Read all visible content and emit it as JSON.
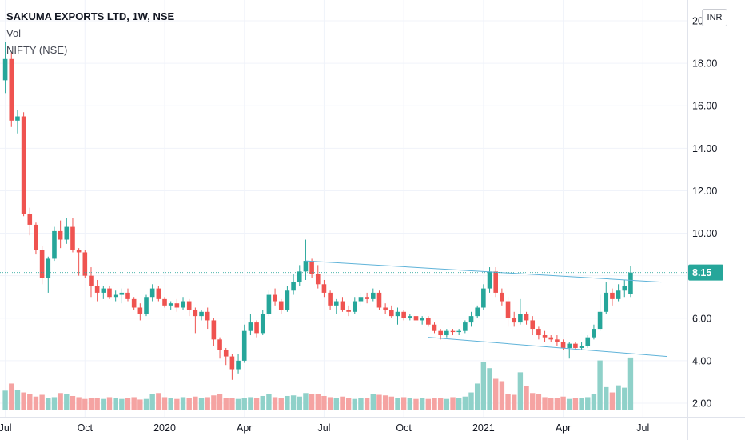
{
  "legend": {
    "title": "SAKUMA EXPORTS LTD, 1W, NSE",
    "vol": "Vol",
    "compare": "NIFTY (NSE)"
  },
  "currency": "INR",
  "colors": {
    "up": "#26a69a",
    "down": "#ef5350",
    "vol_up": "#8fd1c9",
    "vol_down": "#f5a3a2",
    "trend": "#5fb3d9",
    "last_price_bg": "#26a69a"
  },
  "chart_data": {
    "type": "candlestick",
    "title": "SAKUMA EXPORTS LTD, 1W, NSE",
    "ylim": [
      1.4,
      20.6
    ],
    "y_ticks": [
      "20",
      "18.00",
      "16.00",
      "14.00",
      "12.00",
      "10.00",
      "8.00",
      "6.00",
      "4.00",
      "2.00"
    ],
    "y_tick_values": [
      20,
      18,
      16,
      14,
      12,
      10,
      8,
      6,
      4,
      2
    ],
    "x_labels": [
      {
        "w": 0,
        "label": "Jul"
      },
      {
        "w": 13,
        "label": "Oct"
      },
      {
        "w": 26,
        "label": "2020"
      },
      {
        "w": 39,
        "label": "Apr"
      },
      {
        "w": 52,
        "label": "Jul"
      },
      {
        "w": 65,
        "label": "Oct"
      },
      {
        "w": 78,
        "label": "2021"
      },
      {
        "w": 91,
        "label": "Apr"
      },
      {
        "w": 104,
        "label": "Jul"
      }
    ],
    "last_price": "8.15",
    "last_price_value": 8.15,
    "candles": [
      [
        17.2,
        19.0,
        16.6,
        18.2
      ],
      [
        18.2,
        18.5,
        15.0,
        15.3
      ],
      [
        15.3,
        15.8,
        14.7,
        15.5
      ],
      [
        15.5,
        15.7,
        10.8,
        10.9
      ],
      [
        10.9,
        11.2,
        9.9,
        10.4
      ],
      [
        10.4,
        10.5,
        9.0,
        9.2
      ],
      [
        9.2,
        9.4,
        7.6,
        7.9
      ],
      [
        7.9,
        8.9,
        7.2,
        8.8
      ],
      [
        8.8,
        10.3,
        8.7,
        10.1
      ],
      [
        10.1,
        10.6,
        9.3,
        9.7
      ],
      [
        9.7,
        10.7,
        9.5,
        10.3
      ],
      [
        10.3,
        10.7,
        9.1,
        9.2
      ],
      [
        9.2,
        9.3,
        8.0,
        9.1
      ],
      [
        9.1,
        9.2,
        7.9,
        8.0
      ],
      [
        8.0,
        8.4,
        7.0,
        7.5
      ],
      [
        7.5,
        7.8,
        6.8,
        7.2
      ],
      [
        7.2,
        7.5,
        6.9,
        7.4
      ],
      [
        7.4,
        7.5,
        6.9,
        7.0
      ],
      [
        7.0,
        7.3,
        6.8,
        7.1
      ],
      [
        7.1,
        7.4,
        6.7,
        7.2
      ],
      [
        7.2,
        7.4,
        6.8,
        6.9
      ],
      [
        6.9,
        7.0,
        6.4,
        6.5
      ],
      [
        6.5,
        6.7,
        5.9,
        6.2
      ],
      [
        6.2,
        7.1,
        6.1,
        7.0
      ],
      [
        7.0,
        7.6,
        6.8,
        7.4
      ],
      [
        7.4,
        7.5,
        6.8,
        6.9
      ],
      [
        6.9,
        7.0,
        6.5,
        6.6
      ],
      [
        6.6,
        6.8,
        6.4,
        6.7
      ],
      [
        6.7,
        6.9,
        6.3,
        6.5
      ],
      [
        6.5,
        7.0,
        6.4,
        6.8
      ],
      [
        6.8,
        6.9,
        6.1,
        6.4
      ],
      [
        6.4,
        6.5,
        5.3,
        6.1
      ],
      [
        6.1,
        6.4,
        5.9,
        6.3
      ],
      [
        6.3,
        6.5,
        5.5,
        5.9
      ],
      [
        5.9,
        6.0,
        4.7,
        5.0
      ],
      [
        5.0,
        5.1,
        4.1,
        4.5
      ],
      [
        4.5,
        4.6,
        3.8,
        4.2
      ],
      [
        4.2,
        4.3,
        3.1,
        3.6
      ],
      [
        3.6,
        4.3,
        3.4,
        4.0
      ],
      [
        4.0,
        5.7,
        3.9,
        5.4
      ],
      [
        5.4,
        6.2,
        5.2,
        5.8
      ],
      [
        5.8,
        5.9,
        5.1,
        5.3
      ],
      [
        5.3,
        6.4,
        5.2,
        6.2
      ],
      [
        6.2,
        7.3,
        6.1,
        7.1
      ],
      [
        7.1,
        7.4,
        6.6,
        6.8
      ],
      [
        6.8,
        6.9,
        6.2,
        6.4
      ],
      [
        6.4,
        7.5,
        6.3,
        7.3
      ],
      [
        7.3,
        8.1,
        7.1,
        7.7
      ],
      [
        7.7,
        8.5,
        7.5,
        8.2
      ],
      [
        8.2,
        9.7,
        7.8,
        8.7
      ],
      [
        8.7,
        8.8,
        7.9,
        8.1
      ],
      [
        8.1,
        8.5,
        7.4,
        7.6
      ],
      [
        7.6,
        7.8,
        7.0,
        7.2
      ],
      [
        7.2,
        7.3,
        6.4,
        6.6
      ],
      [
        6.6,
        6.9,
        6.2,
        6.8
      ],
      [
        6.8,
        7.0,
        6.3,
        6.4
      ],
      [
        6.4,
        6.6,
        6.1,
        6.3
      ],
      [
        6.3,
        7.0,
        6.2,
        6.8
      ],
      [
        6.8,
        7.2,
        6.6,
        7.0
      ],
      [
        7.0,
        7.2,
        6.7,
        6.9
      ],
      [
        6.9,
        7.4,
        6.8,
        7.2
      ],
      [
        7.2,
        7.3,
        6.4,
        6.5
      ],
      [
        6.5,
        6.7,
        6.2,
        6.4
      ],
      [
        6.4,
        6.6,
        6.0,
        6.1
      ],
      [
        6.1,
        6.5,
        5.7,
        6.3
      ],
      [
        6.3,
        6.4,
        5.9,
        6.0
      ],
      [
        6.0,
        6.2,
        5.9,
        6.1
      ],
      [
        6.1,
        6.2,
        5.8,
        5.9
      ],
      [
        5.9,
        6.1,
        5.7,
        6.0
      ],
      [
        6.0,
        6.1,
        5.6,
        5.7
      ],
      [
        5.7,
        5.8,
        5.3,
        5.4
      ],
      [
        5.4,
        5.5,
        5.0,
        5.2
      ],
      [
        5.2,
        5.5,
        5.1,
        5.4
      ],
      [
        5.4,
        5.5,
        5.2,
        5.35
      ],
      [
        5.35,
        5.5,
        5.2,
        5.4
      ],
      [
        5.4,
        5.9,
        5.3,
        5.8
      ],
      [
        5.8,
        6.3,
        5.6,
        6.1
      ],
      [
        6.1,
        6.6,
        6.0,
        6.5
      ],
      [
        6.5,
        7.6,
        6.4,
        7.4
      ],
      [
        7.4,
        8.4,
        7.2,
        8.2
      ],
      [
        8.2,
        8.4,
        7.0,
        7.2
      ],
      [
        7.2,
        7.4,
        6.6,
        6.8
      ],
      [
        6.8,
        7.0,
        5.6,
        6.0
      ],
      [
        6.0,
        6.3,
        5.6,
        5.8
      ],
      [
        5.8,
        6.9,
        5.7,
        6.2
      ],
      [
        6.2,
        6.3,
        5.7,
        5.9
      ],
      [
        5.9,
        6.1,
        5.2,
        5.5
      ],
      [
        5.5,
        5.6,
        5.0,
        5.2
      ],
      [
        5.2,
        5.4,
        4.9,
        5.1
      ],
      [
        5.1,
        5.2,
        4.9,
        5.0
      ],
      [
        5.0,
        5.2,
        4.7,
        4.9
      ],
      [
        4.9,
        5.0,
        4.5,
        4.6
      ],
      [
        4.6,
        4.9,
        4.1,
        4.8
      ],
      [
        4.8,
        4.9,
        4.5,
        4.6
      ],
      [
        4.6,
        4.9,
        4.5,
        4.7
      ],
      [
        4.7,
        5.2,
        4.6,
        5.1
      ],
      [
        5.1,
        5.7,
        5.0,
        5.5
      ],
      [
        5.5,
        7.1,
        5.4,
        6.3
      ],
      [
        6.3,
        7.7,
        6.2,
        7.2
      ],
      [
        7.2,
        7.4,
        6.6,
        6.9
      ],
      [
        6.9,
        7.6,
        6.8,
        7.3
      ],
      [
        7.3,
        7.8,
        7.0,
        7.5
      ],
      [
        7.15,
        8.45,
        7.0,
        8.15
      ]
    ],
    "volumes": [
      3.2,
      4.4,
      3.3,
      2.9,
      2.6,
      2.2,
      2.5,
      2.0,
      2.1,
      2.8,
      2.7,
      2.3,
      2.1,
      1.8,
      1.9,
      1.9,
      1.8,
      2.1,
      1.9,
      1.8,
      1.9,
      2.1,
      1.7,
      1.8,
      2.6,
      2.8,
      2.1,
      1.9,
      1.8,
      2.1,
      1.9,
      2.2,
      2.0,
      2.1,
      2.4,
      2.6,
      2.0,
      1.9,
      1.8,
      2.0,
      2.1,
      1.9,
      2.3,
      2.6,
      2.1,
      2.0,
      2.3,
      2.4,
      2.2,
      2.8,
      2.7,
      2.6,
      2.3,
      2.1,
      2.0,
      2.2,
      1.9,
      1.8,
      2.0,
      1.9,
      2.6,
      2.5,
      2.4,
      2.2,
      2.0,
      2.1,
      1.9,
      1.8,
      1.9,
      1.8,
      2.0,
      1.9,
      1.8,
      2.1,
      2.0,
      2.2,
      2.9,
      4.4,
      8.0,
      7.0,
      5.2,
      4.8,
      2.6,
      2.5,
      6.3,
      4.0,
      2.8,
      2.6,
      2.1,
      2.0,
      1.9,
      2.2,
      1.8,
      1.9,
      2.0,
      2.1,
      2.6,
      8.3,
      3.8,
      2.9,
      4.1,
      3.7,
      8.8
    ],
    "trendlines": [
      {
        "from": [
          49,
          8.7
        ],
        "to": [
          107,
          7.7
        ]
      },
      {
        "from": [
          69,
          5.1
        ],
        "to": [
          108,
          4.2
        ]
      }
    ]
  }
}
